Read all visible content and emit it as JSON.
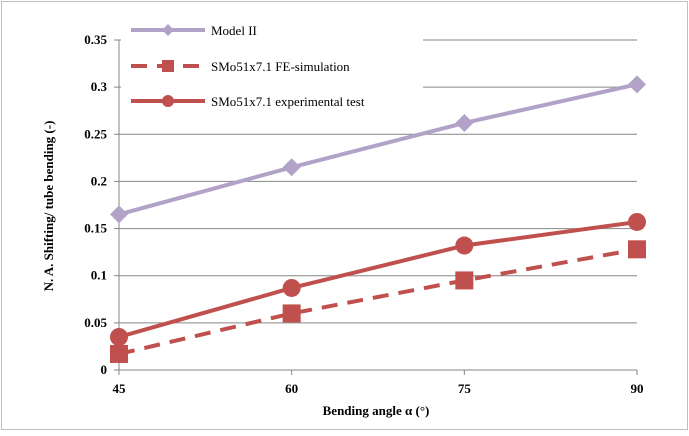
{
  "chart_data": {
    "type": "line",
    "title": "",
    "xlabel": "Bending angle α (°)",
    "ylabel": "N. A. Shifting/ tube bending (-)",
    "x": [
      45,
      60,
      75,
      90
    ],
    "x_tick_labels": [
      "45",
      "60",
      "75",
      "90"
    ],
    "ylim": [
      0,
      0.35
    ],
    "y_tick_labels": [
      "0",
      "0.05",
      "0.1",
      "0.15",
      "0.2",
      "0.25",
      "0.3",
      "0.35"
    ],
    "y_ticks": [
      0,
      0.05,
      0.1,
      0.15,
      0.2,
      0.25,
      0.3,
      0.35
    ],
    "grid": "horizontal",
    "legend_placement": "top-left",
    "series": [
      {
        "name": "Model II",
        "values": [
          0.165,
          0.215,
          0.262,
          0.303
        ],
        "color": "#b3a2c7",
        "marker": "diamond",
        "line_style": "solid"
      },
      {
        "name": "SMo51x7.1 FE-simulation",
        "values": [
          0.017,
          0.06,
          0.095,
          0.128
        ],
        "color": "#c0504d",
        "marker": "square",
        "line_style": "dashed"
      },
      {
        "name": "SMo51x7.1 experimental test",
        "values": [
          0.035,
          0.087,
          0.132,
          0.157
        ],
        "color": "#c0504d",
        "marker": "circle",
        "line_style": "solid"
      }
    ]
  }
}
